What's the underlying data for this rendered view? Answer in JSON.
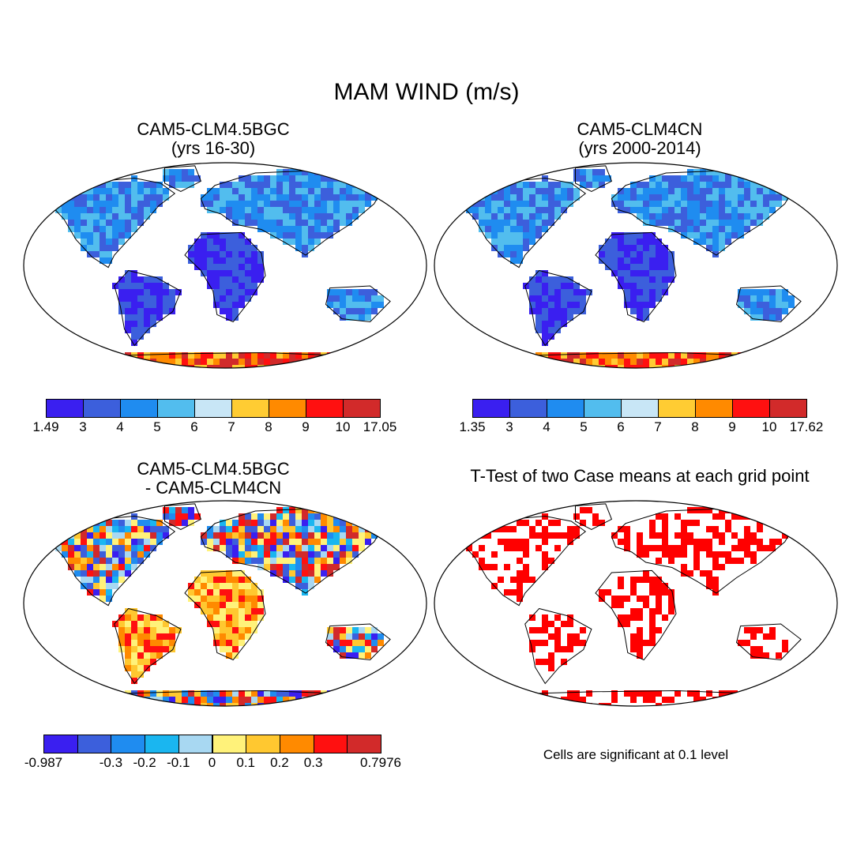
{
  "title": "MAM WIND (m/s)",
  "panels": [
    {
      "title_line1": "CAM5-CLM4.5BGC",
      "title_line2": "(yrs 16-30)"
    },
    {
      "title_line1": "CAM5-CLM4CN",
      "title_line2": "(yrs 2000-2014)"
    },
    {
      "title_line1": "CAM5-CLM4.5BGC",
      "title_line2": "- CAM5-CLM4CN"
    },
    {
      "title_line1": "T-Test of two Case means at each grid point"
    }
  ],
  "colorbars": [
    {
      "labels": [
        "1.49",
        "3",
        "4",
        "5",
        "6",
        "7",
        "8",
        "9",
        "10",
        "17.05"
      ],
      "colors": [
        "#3a1ff0",
        "#3c5fdc",
        "#1f8cf0",
        "#52bdee",
        "#c8e6f6",
        "#ffcc33",
        "#ff8a00",
        "#ff1010",
        "#d22a2a"
      ]
    },
    {
      "labels": [
        "1.35",
        "3",
        "4",
        "5",
        "6",
        "7",
        "8",
        "9",
        "10",
        "17.62"
      ],
      "colors": [
        "#3a1ff0",
        "#3c5fdc",
        "#1f8cf0",
        "#52bdee",
        "#c8e6f6",
        "#ffcc33",
        "#ff8a00",
        "#ff1010",
        "#d22a2a"
      ]
    },
    {
      "labels": [
        "-0.987",
        "",
        "-0.3",
        "-0.2",
        "-0.1",
        "0",
        "0.1",
        "0.2",
        "0.3",
        "",
        "0.7976"
      ],
      "colors": [
        "#3a1ff0",
        "#3c5fdc",
        "#1f8cf0",
        "#1ab6f0",
        "#a8d8f2",
        "#fff27a",
        "#ffc830",
        "#ff8a00",
        "#ff1010",
        "#d22a2a"
      ]
    }
  ],
  "note": "Cells are significant at 0.1 level",
  "map_colors": {
    "ocean": "#ffffff",
    "coast": "#000000",
    "significant": "#ff0000"
  }
}
